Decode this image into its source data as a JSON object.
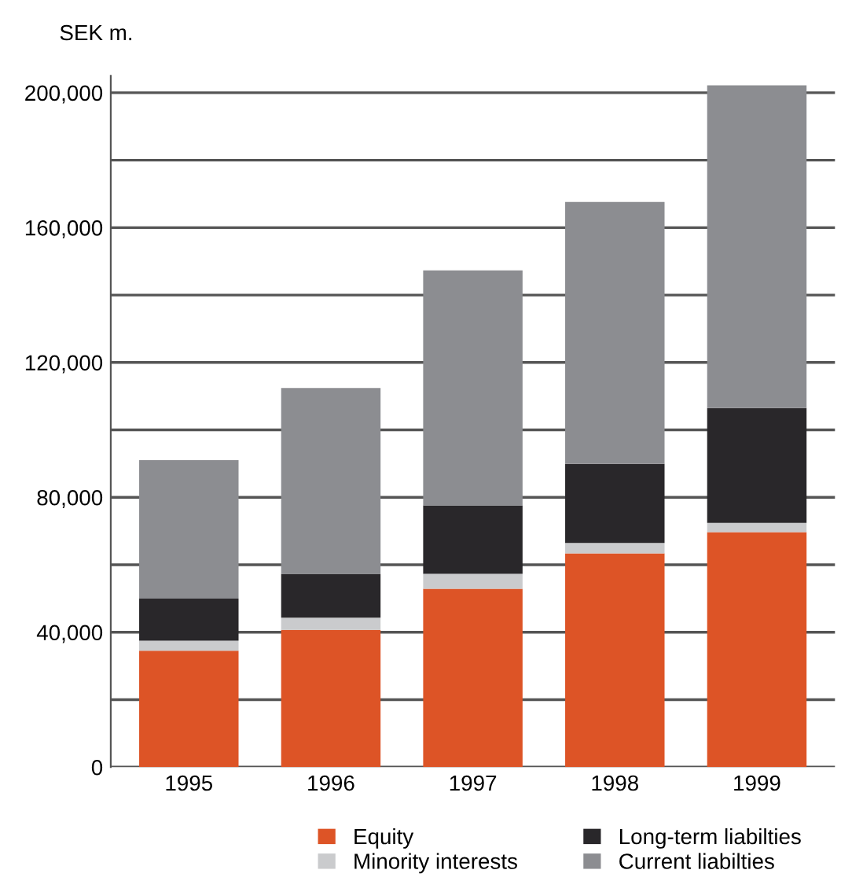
{
  "chart_data": {
    "type": "bar",
    "stacked": true,
    "ylabel": "SEK m.",
    "categories": [
      "1995",
      "1996",
      "1997",
      "1998",
      "1999"
    ],
    "series": [
      {
        "name": "Equity",
        "color": "#dd5426",
        "values": [
          34500,
          40700,
          52900,
          63400,
          69700
        ]
      },
      {
        "name": "Minority interests",
        "color": "#cacbcd",
        "values": [
          3000,
          3600,
          4400,
          3100,
          2700
        ]
      },
      {
        "name": "Long-term liabilties",
        "color": "#29272a",
        "values": [
          12500,
          13000,
          20300,
          23400,
          34100
        ]
      },
      {
        "name": "Current liabilties",
        "color": "#8c8d91",
        "values": [
          41000,
          55100,
          69700,
          77700,
          95700
        ]
      }
    ],
    "ylim": [
      0,
      205000
    ],
    "yticks": [
      {
        "value": 0,
        "label": "0"
      },
      {
        "value": 20000,
        "label": null
      },
      {
        "value": 40000,
        "label": "40,000"
      },
      {
        "value": 60000,
        "label": null
      },
      {
        "value": 80000,
        "label": "80,000"
      },
      {
        "value": 100000,
        "label": null
      },
      {
        "value": 120000,
        "label": "120,000"
      },
      {
        "value": 140000,
        "label": null
      },
      {
        "value": 160000,
        "label": "160,000"
      },
      {
        "value": 180000,
        "label": null
      },
      {
        "value": 200000,
        "label": "200,000"
      }
    ],
    "grid": "y",
    "legend": "bottom"
  }
}
